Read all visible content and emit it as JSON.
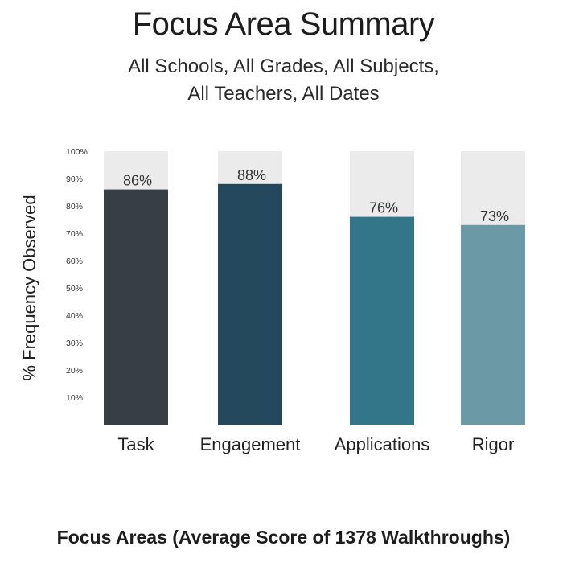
{
  "chart_data": {
    "type": "bar",
    "title": "Focus Area Summary",
    "subtitle": [
      "All Schools, All Grades, All Subjects,",
      "All Teachers, All Dates"
    ],
    "ylabel": "% Frequency Observed",
    "xlabel": "Focus Areas (Average Score of 1378 Walkthroughs)",
    "ylim": [
      0,
      100
    ],
    "yticks": [
      "10%",
      "20%",
      "30%",
      "40%",
      "50%",
      "60%",
      "70%",
      "80%",
      "90%",
      "100%"
    ],
    "categories": [
      "Task",
      "Engagement",
      "Applications",
      "Rigor"
    ],
    "values": [
      86,
      88,
      76,
      73
    ],
    "data_labels": [
      "86%",
      "88%",
      "76%",
      "73%"
    ],
    "bar_colors": [
      "#383e45",
      "#24495c",
      "#33768a",
      "#6b9aa6"
    ],
    "background_bar_color": "#ebebeb",
    "grid": false,
    "legend": "none"
  }
}
